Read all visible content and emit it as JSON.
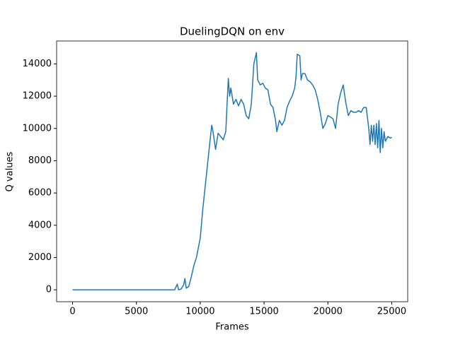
{
  "chart_data": {
    "type": "line",
    "title": "DuelingDQN on env",
    "xlabel": "Frames",
    "ylabel": "Q values",
    "xlim": [
      -1250,
      26250
    ],
    "ylim": [
      -740,
      15420
    ],
    "xticks": [
      0,
      5000,
      10000,
      15000,
      20000,
      25000
    ],
    "yticks": [
      0,
      2000,
      4000,
      6000,
      8000,
      10000,
      12000,
      14000
    ],
    "series": [
      {
        "color": "#1f77b4",
        "x": [
          0,
          8000,
          8200,
          8300,
          8500,
          8700,
          8800,
          8900,
          9100,
          9300,
          9500,
          9700,
          9900,
          10000,
          10200,
          10400,
          10600,
          10800,
          10900,
          11000,
          11200,
          11400,
          11600,
          11800,
          12000,
          12100,
          12200,
          12300,
          12400,
          12600,
          12800,
          13000,
          13200,
          13400,
          13600,
          13800,
          14000,
          14200,
          14400,
          14500,
          14700,
          14900,
          15100,
          15300,
          15500,
          15700,
          15900,
          16000,
          16200,
          16400,
          16600,
          16800,
          17000,
          17200,
          17400,
          17500,
          17600,
          17800,
          17900,
          18000,
          18200,
          18400,
          18600,
          18800,
          19000,
          19200,
          19400,
          19600,
          19800,
          20000,
          20200,
          20400,
          20600,
          20800,
          21000,
          21200,
          21400,
          21600,
          21800,
          22000,
          22200,
          22400,
          22600,
          22800,
          23000,
          23200,
          23300,
          23400,
          23500,
          23600,
          23700,
          23800,
          23900,
          24000,
          24100,
          24200,
          24300,
          24400,
          24500,
          24700,
          24900,
          25000
        ],
        "values": [
          0,
          0,
          350,
          0,
          50,
          300,
          700,
          100,
          200,
          800,
          1500,
          2000,
          2800,
          3200,
          5000,
          6500,
          8000,
          9500,
          10200,
          9800,
          8700,
          9700,
          9500,
          9300,
          9800,
          11500,
          13100,
          12000,
          12500,
          11500,
          11800,
          11400,
          11800,
          11500,
          10800,
          10600,
          11500,
          14000,
          14700,
          13000,
          12700,
          12800,
          12500,
          12400,
          11500,
          11300,
          10500,
          9800,
          10500,
          10200,
          10500,
          11300,
          11700,
          12000,
          12500,
          13200,
          14600,
          14500,
          13000,
          13400,
          13400,
          13000,
          12900,
          12700,
          12400,
          11800,
          11000,
          10000,
          10300,
          10800,
          10700,
          10600,
          10000,
          11500,
          12200,
          12700,
          11600,
          10800,
          11100,
          11000,
          11000,
          11100,
          11000,
          11300,
          11300,
          10000,
          9000,
          10200,
          9200,
          10200,
          9000,
          10300,
          8800,
          10500,
          8500,
          10000,
          8800,
          9800,
          9200,
          9500,
          9400,
          9450
        ]
      }
    ]
  }
}
